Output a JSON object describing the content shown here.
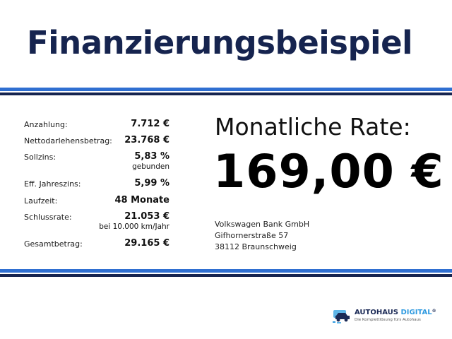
{
  "header": {
    "title": "Finanzierungsbeispiel"
  },
  "colors": {
    "title": "#16244f",
    "stripe_light": "#2f6fd1",
    "stripe_dark": "#16244f"
  },
  "details": [
    {
      "label": "Anzahlung:",
      "value": "7.712 €",
      "note": ""
    },
    {
      "label": "Nettodarlehensbetrag:",
      "value": "23.768 €",
      "note": ""
    },
    {
      "label": "Sollzins:",
      "value": "5,83 %",
      "note": "gebunden"
    },
    {
      "label": "Eff. Jahreszins:",
      "value": "5,99 %",
      "note": ""
    },
    {
      "label": "Laufzeit:",
      "value": "48 Monate",
      "note": ""
    },
    {
      "label": "Schlussrate:",
      "value": "21.053 €",
      "note": "bei 10.000 km/Jahr"
    },
    {
      "label": "Gesamtbetrag:",
      "value": "29.165 €",
      "note": ""
    }
  ],
  "rate": {
    "label": "Monatliche Rate:",
    "value": "169,00 €"
  },
  "bank": {
    "name": "Volkswagen Bank GmbH",
    "street": "Gifhornerstraße 57",
    "city": "38112 Braunschweig"
  },
  "logo": {
    "brand_main": "AUTOHAUS",
    "brand_accent": "DIGITAL",
    "registered": "®",
    "tagline": "Die Komplettlösung fürs Autohaus",
    "icon": "car-icon"
  }
}
